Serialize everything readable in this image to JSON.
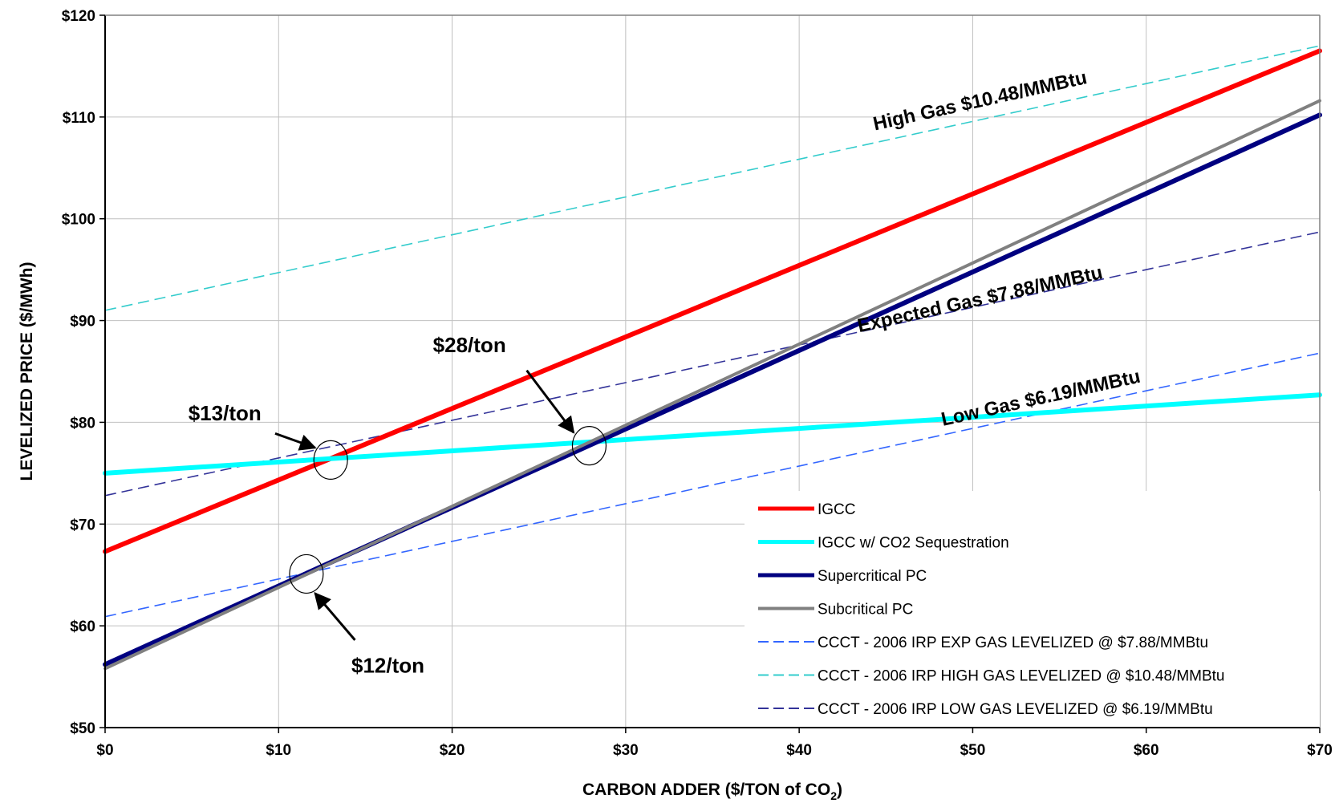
{
  "chart_data": {
    "type": "line",
    "xlabel": "CARBON ADDER ($/TON of CO",
    "xlabel_sub": "2",
    "xlabel_end": ")",
    "ylabel": "LEVELIZED PRICE ($/MWh)",
    "xlim": [
      0,
      70
    ],
    "ylim": [
      50,
      120
    ],
    "x_ticks": [
      0,
      10,
      20,
      30,
      40,
      50,
      60,
      70
    ],
    "x_tick_labels": [
      "$0",
      "$10",
      "$20",
      "$30",
      "$40",
      "$50",
      "$60",
      "$70"
    ],
    "y_ticks": [
      50,
      60,
      70,
      80,
      90,
      100,
      110,
      120
    ],
    "y_tick_labels": [
      "$50",
      "$60",
      "$70",
      "$80",
      "$90",
      "$100",
      "$110",
      "$120"
    ],
    "grid": true,
    "legend_position": "bottom-right",
    "series": [
      {
        "name": "IGCC",
        "style": "solid",
        "color": "#ff0000",
        "width": 6,
        "x": [
          0,
          70
        ],
        "y": [
          67.3,
          116.5
        ]
      },
      {
        "name": "IGCC w/ CO2 Sequestration",
        "style": "solid",
        "color": "#00ffff",
        "width": 6,
        "x": [
          0,
          70
        ],
        "y": [
          75.0,
          82.7
        ]
      },
      {
        "name": "Supercritical PC",
        "style": "solid",
        "color": "#000080",
        "width": 6,
        "x": [
          0,
          70
        ],
        "y": [
          56.2,
          110.2
        ]
      },
      {
        "name": "Subcritical PC",
        "style": "solid",
        "color": "#808080",
        "width": 4,
        "x": [
          0,
          70
        ],
        "y": [
          55.8,
          111.6
        ]
      },
      {
        "name": "CCCT - 2006 IRP EXP GAS LEVELIZED @ $7.88/MMBtu",
        "style": "dashed",
        "color": "#3366ff",
        "width": 1.6,
        "x": [
          0,
          70
        ],
        "y": [
          60.9,
          86.8
        ]
      },
      {
        "name": "CCCT - 2006 IRP HIGH GAS LEVELIZED @ $10.48/MMBtu",
        "style": "dashed",
        "color": "#33cccc",
        "width": 1.6,
        "x": [
          0,
          70
        ],
        "y": [
          91.0,
          117.0
        ]
      },
      {
        "name": "CCCT - 2006 IRP LOW GAS LEVELIZED @ $6.19/MMBtu",
        "style": "dashed",
        "color": "#333399",
        "width": 1.6,
        "x": [
          0,
          70
        ],
        "y": [
          72.8,
          98.7
        ]
      }
    ],
    "line_labels": [
      {
        "text": "High Gas $10.48/MMBtu",
        "x": 50.5,
        "y": 111,
        "angle": -12.5
      },
      {
        "text": "Expected Gas $7.88/MMBtu",
        "x": 50.5,
        "y": 91.5,
        "angle": -12.5
      },
      {
        "text": "Low Gas $6.19/MMBtu",
        "x": 54,
        "y": 81.8,
        "angle": -12.5
      }
    ],
    "annotations": [
      {
        "text": "$13/ton",
        "circle": [
          13,
          76.3
        ],
        "label": [
          6.9,
          80.2
        ],
        "arrow_from": [
          9.8,
          78.9
        ],
        "arrow_to": [
          12.1,
          77.5
        ]
      },
      {
        "text": "$28/ton",
        "circle": [
          27.9,
          77.7
        ],
        "label": [
          21.0,
          86.9
        ],
        "arrow_from": [
          24.3,
          85.1
        ],
        "arrow_to": [
          27.0,
          79.0
        ]
      },
      {
        "text": "$12/ton",
        "circle": [
          11.6,
          65.1
        ],
        "label": [
          16.3,
          55.4
        ],
        "arrow_from": [
          14.4,
          58.6
        ],
        "arrow_to": [
          12.1,
          63.2
        ]
      }
    ]
  }
}
